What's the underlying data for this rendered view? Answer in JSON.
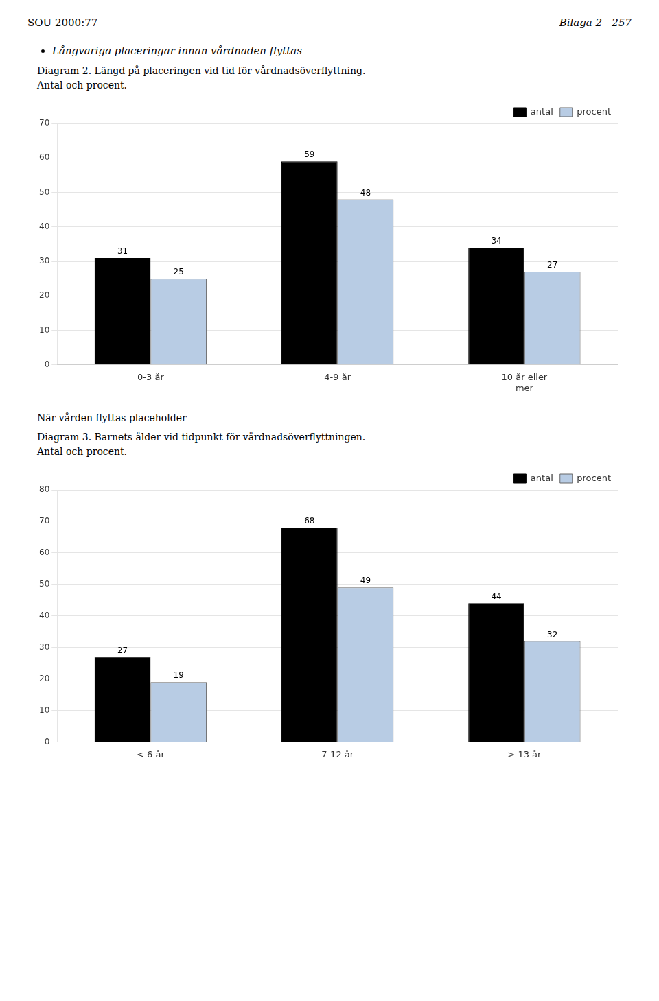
{
  "chart_data": [
    {
      "type": "bar",
      "annotations": [
        "SOU 2000:77",
        "Bilaga 2   257",
        "Långvariga placeringar innan vårdnaden flyttas"
      ],
      "title": "Diagram 2. Längd på placeringen vid tid för vårdnadsöverflyttning.",
      "subtitle": "Antal och procent.",
      "categories": [
        "0-3 år",
        "4-9 år",
        "10 år eller\nmer"
      ],
      "series": [
        {
          "name": "antal",
          "color": "#000000",
          "values": [
            31,
            59,
            34
          ]
        },
        {
          "name": "procent",
          "color": "#b8cce4",
          "values": [
            25,
            48,
            27
          ]
        }
      ],
      "ylim": [
        0,
        70
      ],
      "yticks": [
        0,
        10,
        20,
        30,
        40,
        50,
        60,
        70
      ],
      "grid": true,
      "legend": "upper right",
      "data_labels": true
    },
    {
      "type": "bar",
      "annotations": [
        "När vården flyttas placeholder"
      ],
      "title": "Diagram 3. Barnets ålder vid tidpunkt för vårdnadsöverflyttningen.",
      "subtitle": "Antal och procent.",
      "categories": [
        "< 6 år",
        "7-12 år",
        "> 13 år"
      ],
      "series": [
        {
          "name": "antal",
          "color": "#000000",
          "values": [
            27,
            68,
            44
          ]
        },
        {
          "name": "procent",
          "color": "#b8cce4",
          "values": [
            19,
            49,
            32
          ]
        }
      ],
      "ylim": [
        0,
        80
      ],
      "yticks": [
        0,
        10,
        20,
        30,
        40,
        50,
        60,
        70,
        80
      ],
      "grid": true,
      "legend": "upper right",
      "data_labels": true
    }
  ]
}
